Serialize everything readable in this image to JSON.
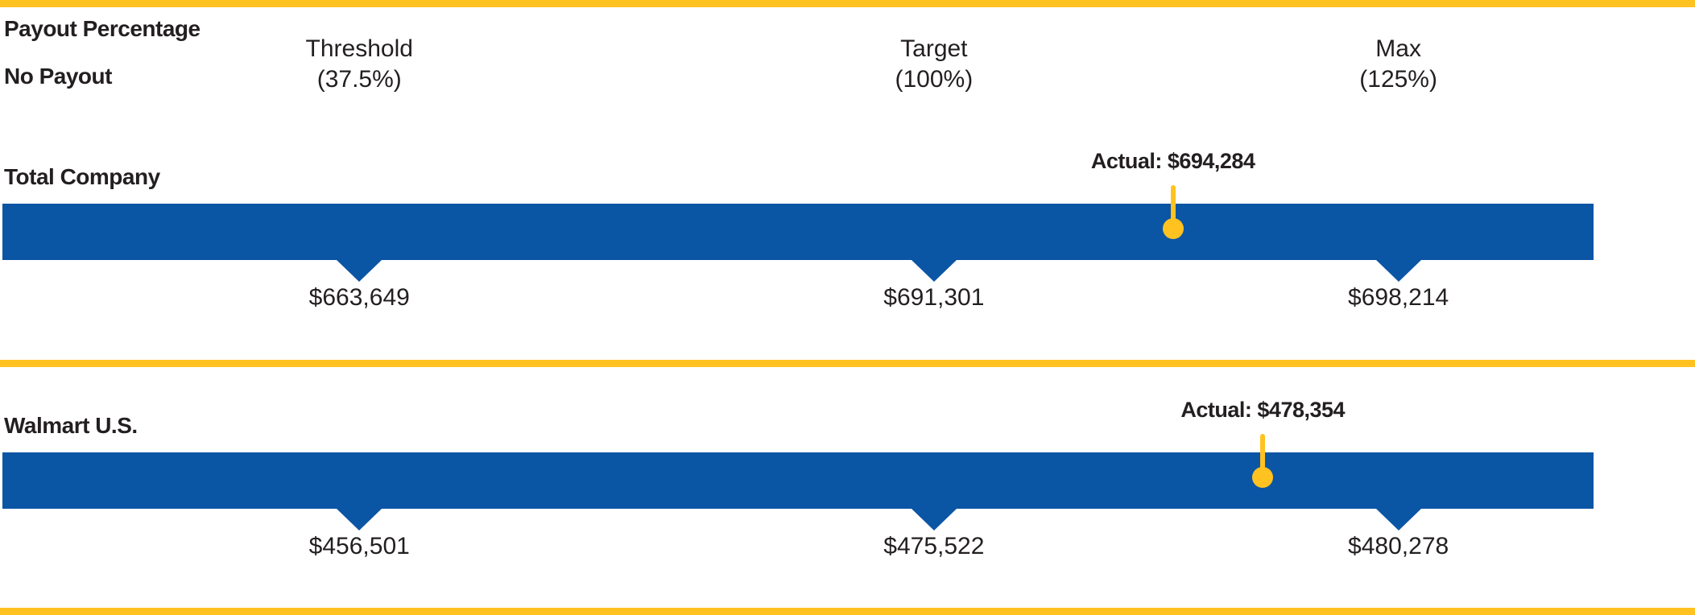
{
  "colors": {
    "accent_yellow": "#FFC220",
    "bar_blue": "#0B55A5",
    "text": "#231F20",
    "background": "#FFFFFF"
  },
  "header": {
    "title": "Payout Percentage",
    "no_payout_label": "No Payout"
  },
  "chart_data": {
    "type": "bar",
    "title": "Payout Percentage",
    "subtitle": "No Payout",
    "orientation": "horizontal payout scale with threshold/target/max notches and actual marker pins",
    "columns": [
      {
        "key": "threshold",
        "label": "Threshold",
        "payout_pct_label": "(37.5%)",
        "payout_pct": 37.5,
        "x_pct": 21.2
      },
      {
        "key": "target",
        "label": "Target",
        "payout_pct_label": "(100%)",
        "payout_pct": 100,
        "x_pct": 55.1
      },
      {
        "key": "max",
        "label": "Max",
        "payout_pct_label": "(125%)",
        "payout_pct": 125,
        "x_pct": 82.5
      }
    ],
    "series": [
      {
        "name": "Total Company",
        "threshold_value": 663649,
        "target_value": 691301,
        "max_value": 698214,
        "actual_value": 694284,
        "threshold_label": "$663,649",
        "target_label": "$691,301",
        "max_label": "$698,214",
        "actual_label": "Actual: $694,284",
        "actual_x_pct": 69.2
      },
      {
        "name": "Walmart U.S.",
        "threshold_value": 456501,
        "target_value": 475522,
        "max_value": 480278,
        "actual_value": 478354,
        "threshold_label": "$456,501",
        "target_label": "$475,522",
        "max_label": "$480,278",
        "actual_label": "Actual: $478,354",
        "actual_x_pct": 74.5
      }
    ],
    "legend": "none",
    "grid": false
  }
}
